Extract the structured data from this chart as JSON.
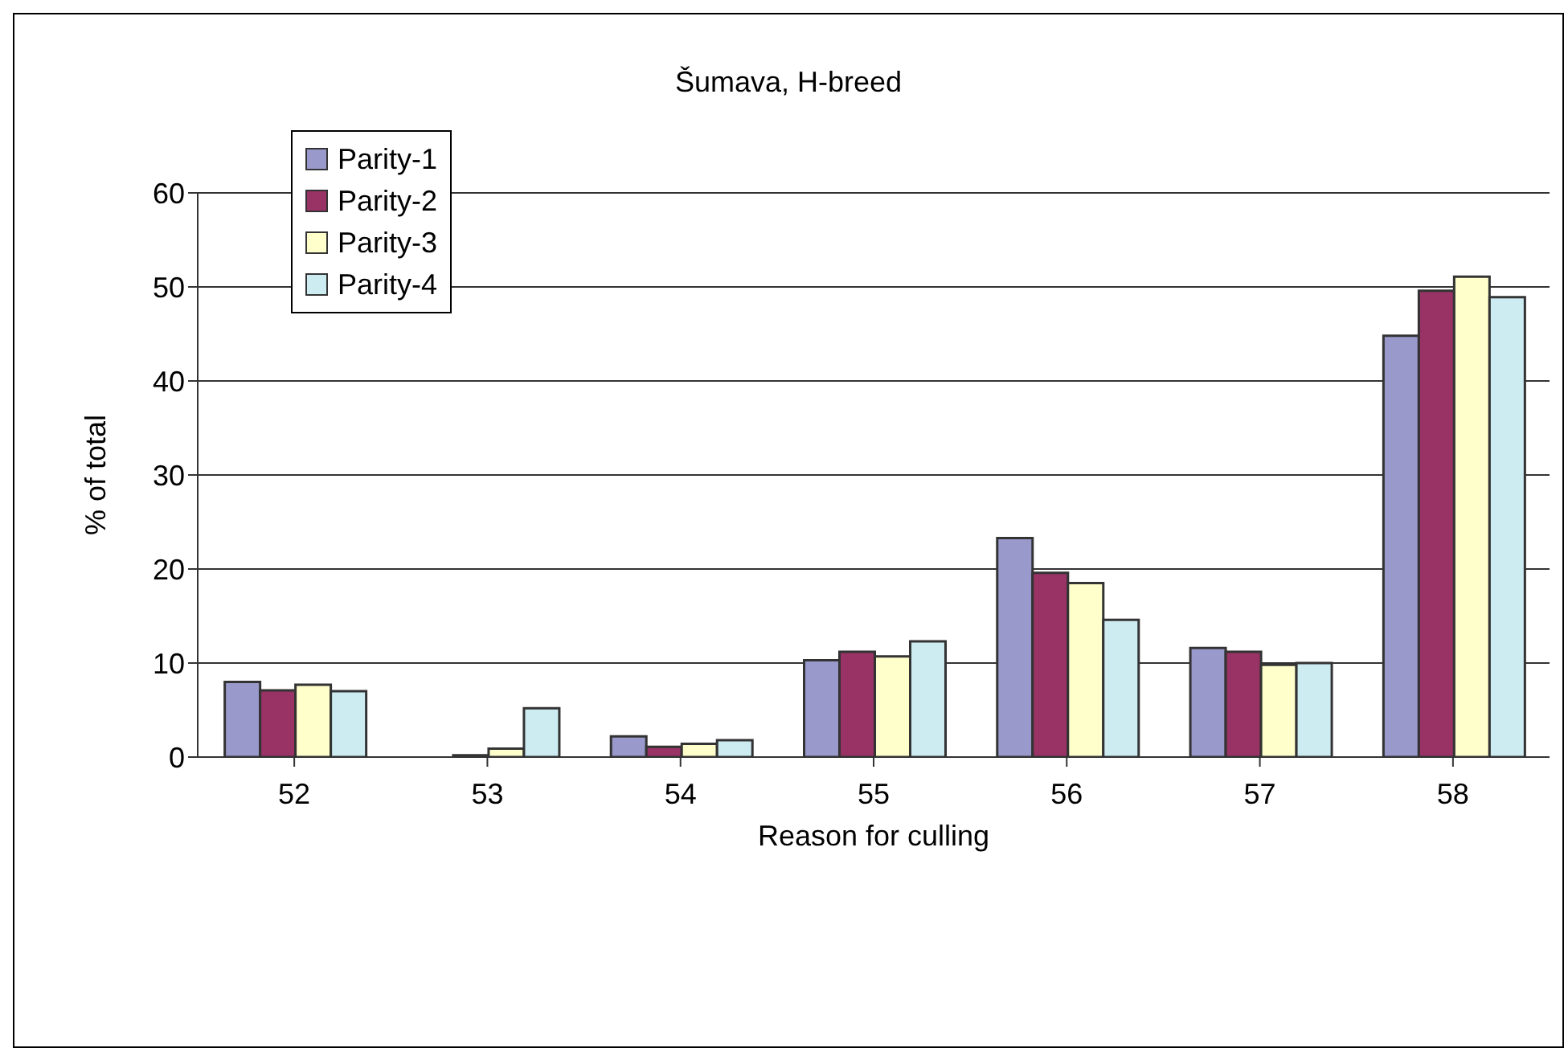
{
  "chart_data": {
    "type": "bar",
    "title": "Šumava, H-breed",
    "xlabel": "Reason for culling",
    "ylabel": "% of total",
    "categories": [
      "52",
      "53",
      "54",
      "55",
      "56",
      "57",
      "58"
    ],
    "series": [
      {
        "name": "Parity-1",
        "color": "#9999cc",
        "values": [
          8.0,
          0.0,
          2.2,
          10.3,
          23.3,
          11.6,
          44.8
        ]
      },
      {
        "name": "Parity-2",
        "color": "#993366",
        "values": [
          7.1,
          0.2,
          1.1,
          11.2,
          19.6,
          11.2,
          49.6
        ]
      },
      {
        "name": "Parity-3",
        "color": "#ffffcc",
        "values": [
          7.7,
          0.9,
          1.4,
          10.7,
          18.5,
          9.8,
          51.1
        ]
      },
      {
        "name": "Parity-4",
        "color": "#ccecf2",
        "values": [
          7.0,
          5.2,
          1.8,
          12.3,
          14.6,
          10.0,
          48.9
        ]
      }
    ],
    "ylim": [
      0,
      60
    ],
    "yticks": [
      0,
      10,
      20,
      30,
      40,
      50,
      60
    ],
    "grid": "y",
    "legend": "top left"
  }
}
